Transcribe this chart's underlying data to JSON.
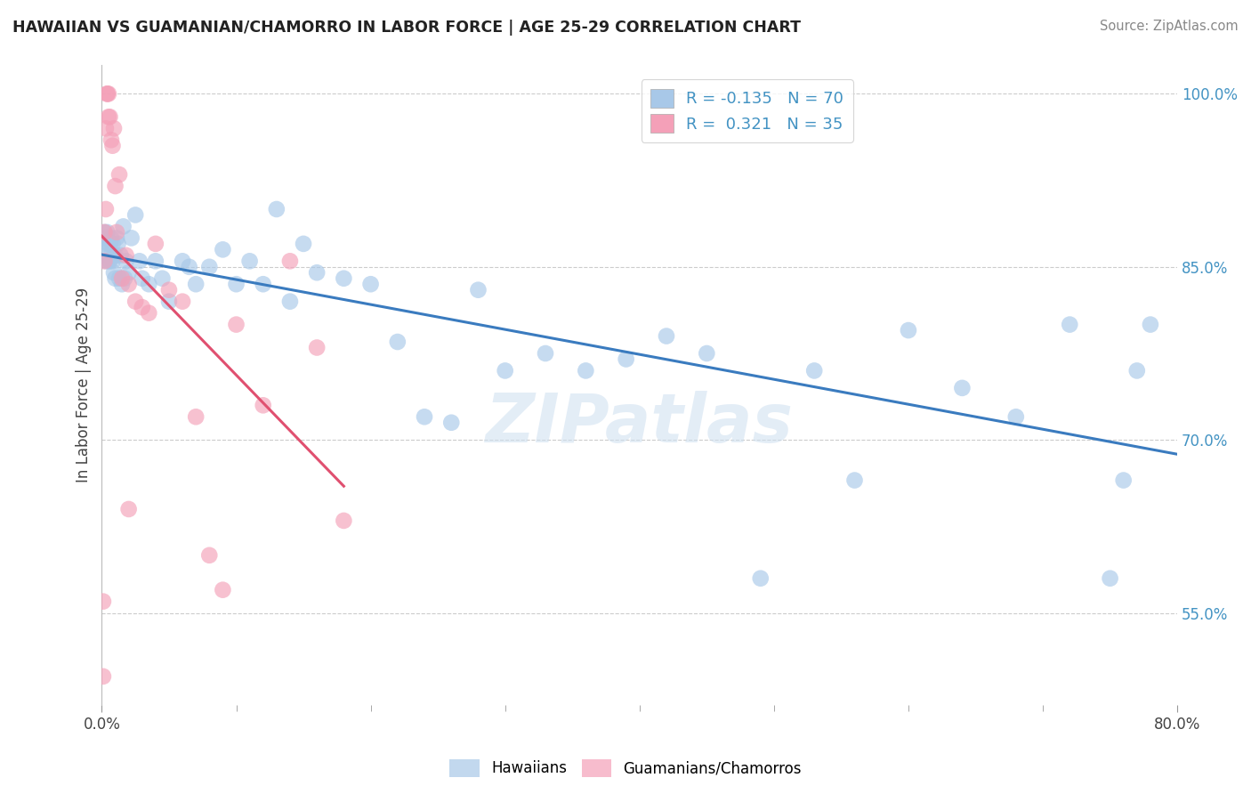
{
  "title": "HAWAIIAN VS GUAMANIAN/CHAMORRO IN LABOR FORCE | AGE 25-29 CORRELATION CHART",
  "source": "Source: ZipAtlas.com",
  "ylabel": "In Labor Force | Age 25-29",
  "xlim": [
    0.0,
    0.8
  ],
  "ylim": [
    0.47,
    1.025
  ],
  "R_hawaiian": -0.135,
  "N_hawaiian": 70,
  "R_guamanian": 0.321,
  "N_guamanian": 35,
  "blue_color": "#a8c8e8",
  "pink_color": "#f4a0b8",
  "blue_line_color": "#3a7bbf",
  "pink_line_color": "#e05070",
  "legend_label_hawaiian": "Hawaiians",
  "legend_label_guamanian": "Guamanians/Chamorros",
  "title_color": "#222222",
  "right_tick_color": "#4393c3",
  "watermark": "ZIPatlas",
  "hawaiian_x": [
    0.002,
    0.002,
    0.003,
    0.003,
    0.004,
    0.004,
    0.005,
    0.005,
    0.006,
    0.006,
    0.007,
    0.007,
    0.008,
    0.008,
    0.009,
    0.009,
    0.01,
    0.01,
    0.011,
    0.012,
    0.013,
    0.014,
    0.015,
    0.016,
    0.017,
    0.018,
    0.02,
    0.022,
    0.025,
    0.028,
    0.03,
    0.035,
    0.04,
    0.045,
    0.05,
    0.06,
    0.065,
    0.07,
    0.08,
    0.09,
    0.1,
    0.11,
    0.12,
    0.13,
    0.14,
    0.15,
    0.16,
    0.18,
    0.2,
    0.22,
    0.24,
    0.26,
    0.28,
    0.3,
    0.33,
    0.36,
    0.39,
    0.42,
    0.45,
    0.49,
    0.53,
    0.56,
    0.6,
    0.64,
    0.68,
    0.72,
    0.75,
    0.76,
    0.77,
    0.78
  ],
  "hawaiian_y": [
    0.88,
    0.87,
    0.855,
    0.875,
    0.86,
    0.88,
    0.87,
    0.855,
    0.87,
    0.855,
    0.875,
    0.86,
    0.855,
    0.87,
    0.845,
    0.86,
    0.84,
    0.86,
    0.875,
    0.87,
    0.84,
    0.86,
    0.835,
    0.885,
    0.84,
    0.855,
    0.845,
    0.875,
    0.895,
    0.855,
    0.84,
    0.835,
    0.855,
    0.84,
    0.82,
    0.855,
    0.85,
    0.835,
    0.85,
    0.865,
    0.835,
    0.855,
    0.835,
    0.9,
    0.82,
    0.87,
    0.845,
    0.84,
    0.835,
    0.785,
    0.72,
    0.715,
    0.83,
    0.76,
    0.775,
    0.76,
    0.77,
    0.79,
    0.775,
    0.58,
    0.76,
    0.665,
    0.795,
    0.745,
    0.72,
    0.8,
    0.58,
    0.665,
    0.76,
    0.8
  ],
  "guamanian_x": [
    0.001,
    0.001,
    0.002,
    0.002,
    0.003,
    0.003,
    0.004,
    0.004,
    0.005,
    0.005,
    0.006,
    0.007,
    0.008,
    0.009,
    0.01,
    0.011,
    0.013,
    0.015,
    0.018,
    0.02,
    0.025,
    0.03,
    0.035,
    0.04,
    0.05,
    0.06,
    0.07,
    0.08,
    0.09,
    0.1,
    0.12,
    0.14,
    0.16,
    0.18,
    0.02
  ],
  "guamanian_y": [
    0.495,
    0.56,
    0.855,
    0.88,
    0.9,
    0.97,
    1.0,
    1.0,
    0.98,
    1.0,
    0.98,
    0.96,
    0.955,
    0.97,
    0.92,
    0.88,
    0.93,
    0.84,
    0.86,
    0.835,
    0.82,
    0.815,
    0.81,
    0.87,
    0.83,
    0.82,
    0.72,
    0.6,
    0.57,
    0.8,
    0.73,
    0.855,
    0.78,
    0.63,
    0.64
  ]
}
